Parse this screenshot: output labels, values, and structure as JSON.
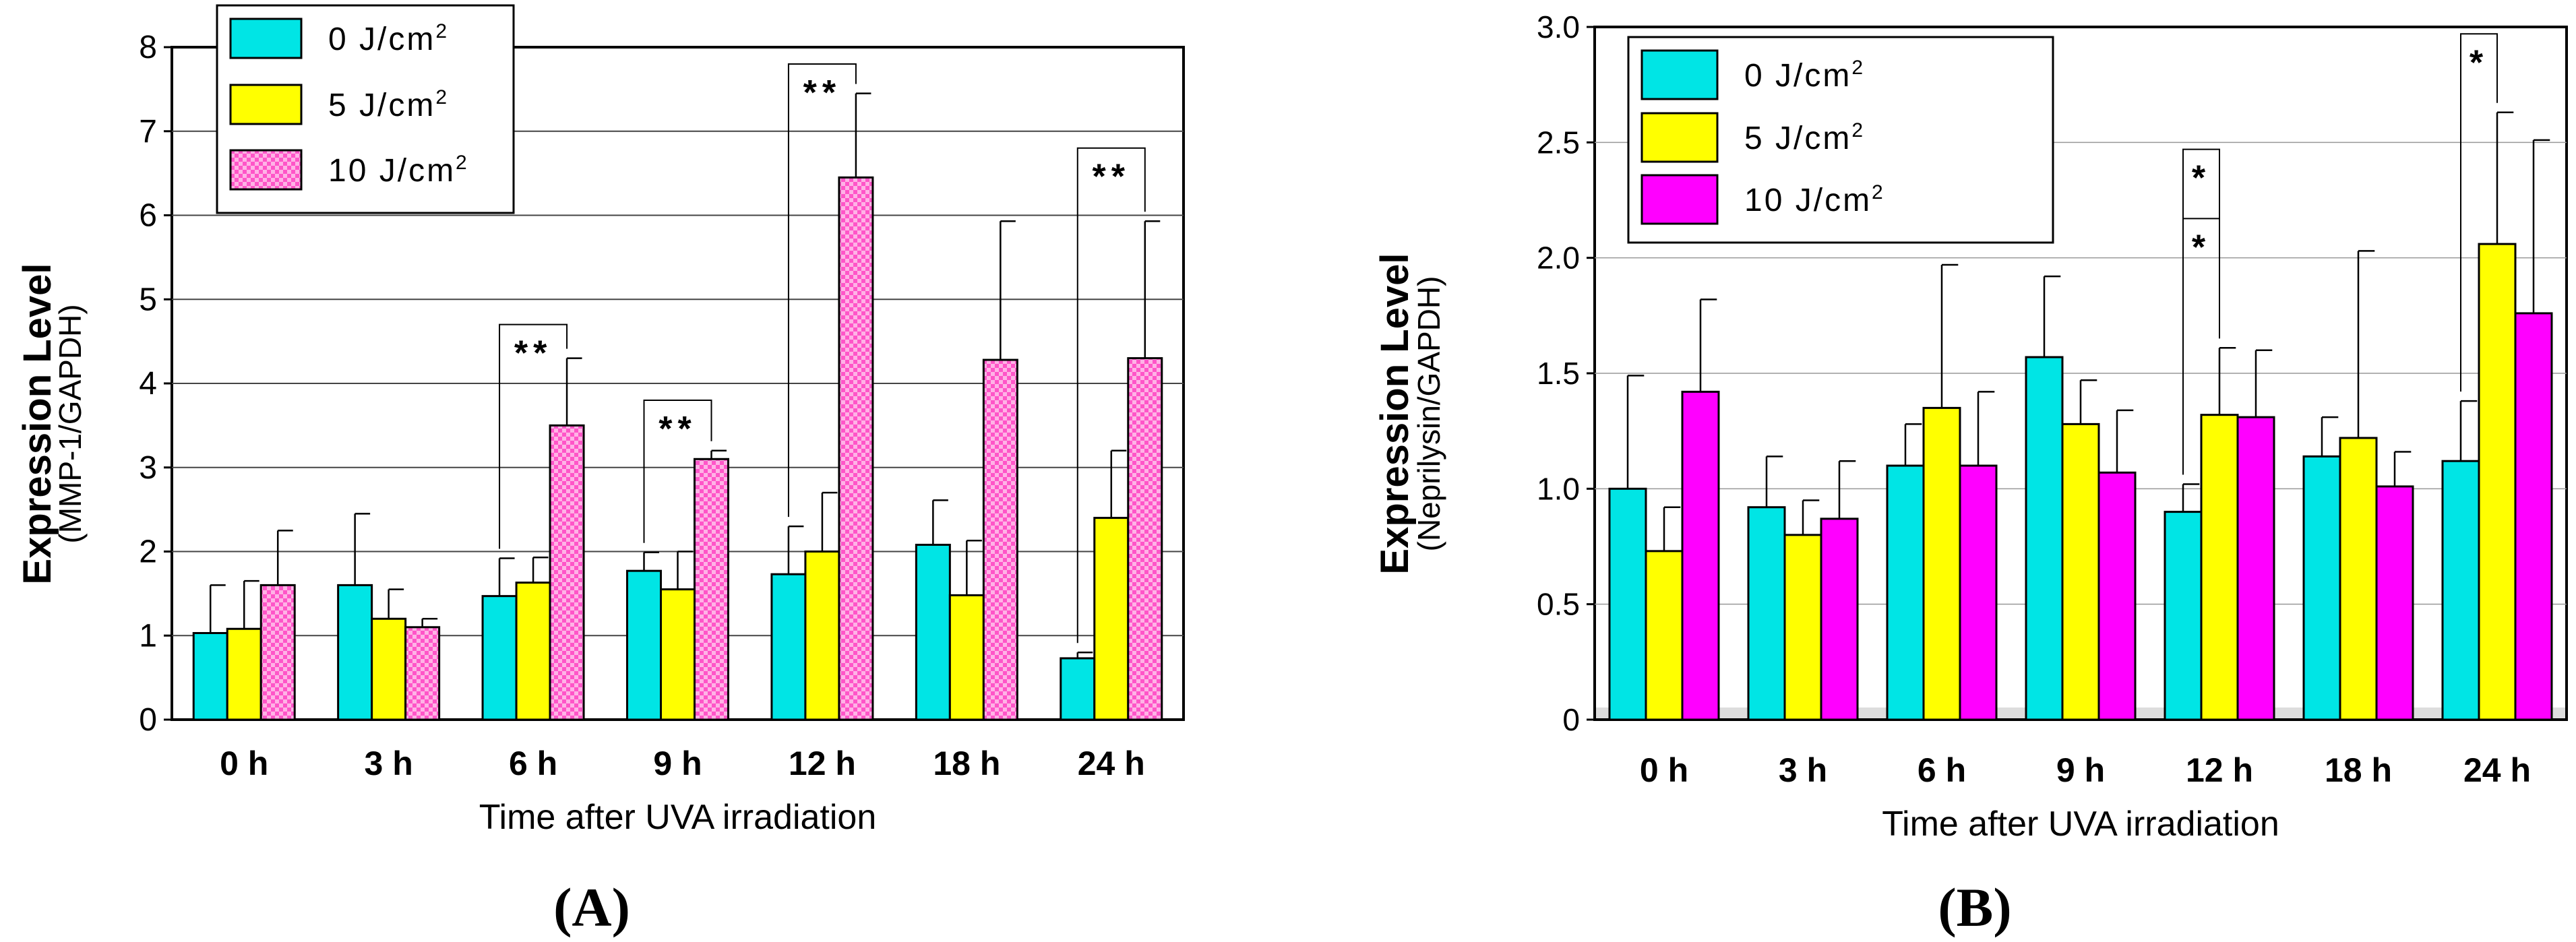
{
  "chart_data": [
    {
      "panel": "(A)",
      "type": "bar",
      "title": "",
      "xlabel": "Time after UVA irradiation",
      "ylabel": "Expression Level",
      "ylabel_sub": "(MMP-1/GAPDH)",
      "ylim": [
        0,
        8
      ],
      "yticks": [
        "0",
        "1",
        "2",
        "3",
        "4",
        "5",
        "6",
        "7",
        "8"
      ],
      "categories": [
        "0 h",
        "3 h",
        "6 h",
        "9 h",
        "12 h",
        "18 h",
        "24 h"
      ],
      "series": [
        {
          "name": "0 J/cm",
          "sup": "2",
          "color": "#00e5e5",
          "pattern": "solid",
          "values": [
            1.03,
            1.6,
            1.47,
            1.77,
            1.73,
            2.08,
            0.73
          ],
          "errors": [
            0.57,
            0.85,
            0.45,
            0.22,
            0.57,
            0.53,
            0.07
          ]
        },
        {
          "name": "5 J/cm",
          "sup": "2",
          "color": "#ffff00",
          "pattern": "solid",
          "values": [
            1.08,
            1.2,
            1.63,
            1.55,
            2.0,
            1.48,
            2.4
          ],
          "errors": [
            0.57,
            0.35,
            0.3,
            0.45,
            0.7,
            0.65,
            0.8
          ]
        },
        {
          "name": "10 J/cm",
          "sup": "2",
          "color": "#ff66cc",
          "pattern": "checker",
          "values": [
            1.6,
            1.1,
            3.5,
            3.1,
            6.45,
            4.28,
            4.3
          ],
          "errors": [
            0.65,
            0.1,
            0.8,
            0.1,
            1.0,
            1.65,
            1.63
          ]
        }
      ],
      "annotations": [
        {
          "label": "**",
          "category": 2,
          "from": 0,
          "to": 2,
          "top": 4.7
        },
        {
          "label": "**",
          "category": 3,
          "from": 0,
          "to": 2,
          "top": 3.8
        },
        {
          "label": "**",
          "category": 4,
          "from": 0,
          "to": 2,
          "top": 7.8
        },
        {
          "label": "**",
          "category": 6,
          "from": 0,
          "to": 2,
          "top": 6.8
        }
      ],
      "legend": "top-left"
    },
    {
      "panel": "(B)",
      "type": "bar",
      "title": "",
      "xlabel": "Time after UVA irradiation",
      "ylabel": "Expression Level",
      "ylabel_sub": "(Neprilysin/GAPDH)",
      "ylim": [
        0,
        3
      ],
      "yticks": [
        "0",
        "0.5",
        "1.0",
        "1.5",
        "2.0",
        "2.5",
        "3.0"
      ],
      "categories": [
        "0 h",
        "3 h",
        "6 h",
        "9 h",
        "12 h",
        "18 h",
        "24 h"
      ],
      "series": [
        {
          "name": "0 J/cm",
          "sup": "2",
          "color": "#00e5e5",
          "pattern": "solid",
          "values": [
            1.0,
            0.92,
            1.1,
            1.57,
            0.9,
            1.14,
            1.12
          ],
          "errors": [
            0.49,
            0.22,
            0.18,
            0.35,
            0.12,
            0.17,
            0.26
          ]
        },
        {
          "name": "5 J/cm",
          "sup": "2",
          "color": "#ffff00",
          "pattern": "solid",
          "values": [
            0.73,
            0.8,
            1.35,
            1.28,
            1.32,
            1.22,
            2.06
          ],
          "errors": [
            0.19,
            0.15,
            0.62,
            0.19,
            0.29,
            0.81,
            0.57
          ]
        },
        {
          "name": "10 J/cm",
          "sup": "2",
          "color": "#ff00ff",
          "pattern": "solid",
          "values": [
            1.42,
            0.87,
            1.1,
            1.07,
            1.31,
            1.01,
            1.76
          ],
          "errors": [
            0.4,
            0.25,
            0.32,
            0.27,
            0.29,
            0.15,
            0.75
          ]
        }
      ],
      "annotations": [
        {
          "label": "*",
          "category": 4,
          "from": 0,
          "to": 1,
          "top": 2.5,
          "bracket_top": 2.47
        },
        {
          "label": "*",
          "category": 4,
          "from": 0,
          "to": 1,
          "top": 2.2,
          "bracket_top": 2.17
        },
        {
          "label": "*",
          "category": 6,
          "from": 0,
          "to": 1,
          "top": 3.0,
          "bracket_top": 2.97
        }
      ],
      "legend": "top-left"
    }
  ]
}
